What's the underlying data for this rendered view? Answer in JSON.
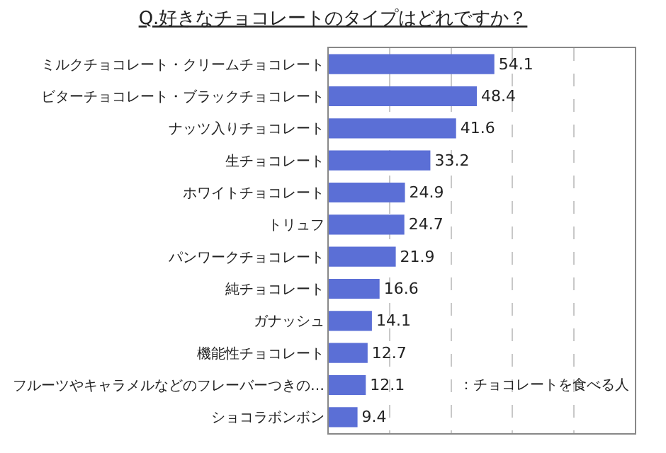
{
  "chart_data": {
    "type": "bar",
    "orientation": "horizontal",
    "title": "Q.好きなチョコレートのタイプはどれですか？",
    "categories": [
      "ミルクチョコレート・クリームチョコレート",
      "ビターチョコレート・ブラックチョコレート",
      "ナッツ入りチョコレート",
      "生チョコレート",
      "ホワイトチョコレート",
      "トリュフ",
      "パンワークチョコレート",
      "純チョコレート",
      "ガナッシュ",
      "機能性チョコレート",
      "フルーツやキャラメルなどのフレーバーつきの…",
      "ショコラボンボン"
    ],
    "values": [
      54.1,
      48.4,
      41.6,
      33.2,
      24.9,
      24.7,
      21.9,
      16.6,
      14.1,
      12.7,
      12.1,
      9.4
    ],
    "color": "#5b6fd6",
    "xlim": [
      0,
      100
    ],
    "xticks": [
      {
        "value": 0,
        "label": null
      },
      {
        "value": 20,
        "label": null
      },
      {
        "value": 40,
        "label": null
      },
      {
        "value": 60,
        "label": null
      },
      {
        "value": 80,
        "label": null
      },
      {
        "value": 100,
        "label": null
      }
    ],
    "grid": "x",
    "tick_labels": "y",
    "data_labels": true,
    "annotations": [
      "：チョコレートを食べる人"
    ]
  }
}
